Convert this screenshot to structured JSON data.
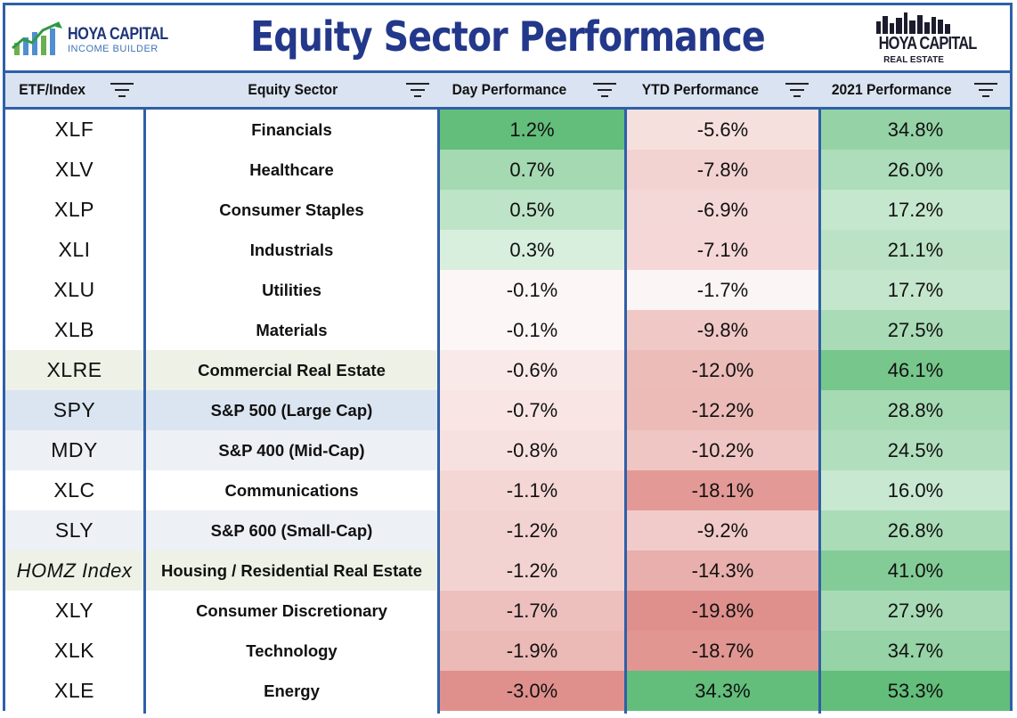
{
  "header": {
    "title": "Equity Sector Performance",
    "logo_left_line1": "HOYA CAPITAL",
    "logo_left_line2": "INCOME BUILDER",
    "logo_right_line1": "HOYA CAPITAL",
    "logo_right_line2": "REAL ESTATE"
  },
  "columns": [
    {
      "label": "ETF/Index"
    },
    {
      "label": "Equity Sector"
    },
    {
      "label": "Day Performance"
    },
    {
      "label": "YTD Performance"
    },
    {
      "label": "2021 Performance"
    }
  ],
  "chart_data": {
    "type": "table",
    "columns": [
      "ETF/Index",
      "Equity Sector",
      "Day Performance",
      "YTD Performance",
      "2021 Performance"
    ],
    "rows": [
      {
        "etf": "XLF",
        "sector": "Financials",
        "day": "1.2%",
        "ytd": "-5.6%",
        "y2021": "34.8%",
        "day_value": 1.2,
        "ytd_value": -5.6,
        "y2021_value": 34.8
      },
      {
        "etf": "XLV",
        "sector": "Healthcare",
        "day": "0.7%",
        "ytd": "-7.8%",
        "y2021": "26.0%",
        "day_value": 0.7,
        "ytd_value": -7.8,
        "y2021_value": 26.0
      },
      {
        "etf": "XLP",
        "sector": "Consumer Staples",
        "day": "0.5%",
        "ytd": "-6.9%",
        "y2021": "17.2%",
        "day_value": 0.5,
        "ytd_value": -6.9,
        "y2021_value": 17.2
      },
      {
        "etf": "XLI",
        "sector": "Industrials",
        "day": "0.3%",
        "ytd": "-7.1%",
        "y2021": "21.1%",
        "day_value": 0.3,
        "ytd_value": -7.1,
        "y2021_value": 21.1
      },
      {
        "etf": "XLU",
        "sector": "Utilities",
        "day": "-0.1%",
        "ytd": "-1.7%",
        "y2021": "17.7%",
        "day_value": -0.1,
        "ytd_value": -1.7,
        "y2021_value": 17.7
      },
      {
        "etf": "XLB",
        "sector": "Materials",
        "day": "-0.1%",
        "ytd": "-9.8%",
        "y2021": "27.5%",
        "day_value": -0.1,
        "ytd_value": -9.8,
        "y2021_value": 27.5
      },
      {
        "etf": "XLRE",
        "sector": "Commercial Real Estate",
        "day": "-0.6%",
        "ytd": "-12.0%",
        "y2021": "46.1%",
        "day_value": -0.6,
        "ytd_value": -12.0,
        "y2021_value": 46.1
      },
      {
        "etf": "SPY",
        "sector": "S&P 500 (Large Cap)",
        "day": "-0.7%",
        "ytd": "-12.2%",
        "y2021": "28.8%",
        "day_value": -0.7,
        "ytd_value": -12.2,
        "y2021_value": 28.8
      },
      {
        "etf": "MDY",
        "sector": "S&P 400 (Mid-Cap)",
        "day": "-0.8%",
        "ytd": "-10.2%",
        "y2021": "24.5%",
        "day_value": -0.8,
        "ytd_value": -10.2,
        "y2021_value": 24.5
      },
      {
        "etf": "XLC",
        "sector": "Communications",
        "day": "-1.1%",
        "ytd": "-18.1%",
        "y2021": "16.0%",
        "day_value": -1.1,
        "ytd_value": -18.1,
        "y2021_value": 16.0
      },
      {
        "etf": "SLY",
        "sector": "S&P 600 (Small-Cap)",
        "day": "-1.2%",
        "ytd": "-9.2%",
        "y2021": "26.8%",
        "day_value": -1.2,
        "ytd_value": -9.2,
        "y2021_value": 26.8
      },
      {
        "etf": "HOMZ Index",
        "sector": "Housing / Residential Real Estate",
        "day": "-1.2%",
        "ytd": "-14.3%",
        "y2021": "41.0%",
        "day_value": -1.2,
        "ytd_value": -14.3,
        "y2021_value": 41.0
      },
      {
        "etf": "XLY",
        "sector": "Consumer Discretionary",
        "day": "-1.7%",
        "ytd": "-19.8%",
        "y2021": "27.9%",
        "day_value": -1.7,
        "ytd_value": -19.8,
        "y2021_value": 27.9
      },
      {
        "etf": "XLK",
        "sector": "Technology",
        "day": "-1.9%",
        "ytd": "-18.7%",
        "y2021": "34.7%",
        "day_value": -1.9,
        "ytd_value": -18.7,
        "y2021_value": 34.7
      },
      {
        "etf": "XLE",
        "sector": "Energy",
        "day": "-3.0%",
        "ytd": "34.3%",
        "y2021": "53.3%",
        "day_value": -3.0,
        "ytd_value": 34.3,
        "y2021_value": 53.3
      }
    ]
  },
  "colors": {
    "border": "#2f5fa8",
    "title": "#23388a",
    "header_band": "#d9e3f1",
    "positive": "#63be7b",
    "negative": "#e0908c",
    "neutral": "#ffffff",
    "highlight_real_estate": "#eef2e6",
    "highlight_index": "#dbe5f1"
  },
  "icons": {
    "filter": "filter-icon",
    "logo_left": "rising-bars-logo-icon",
    "logo_right": "skyline-logo-icon"
  }
}
